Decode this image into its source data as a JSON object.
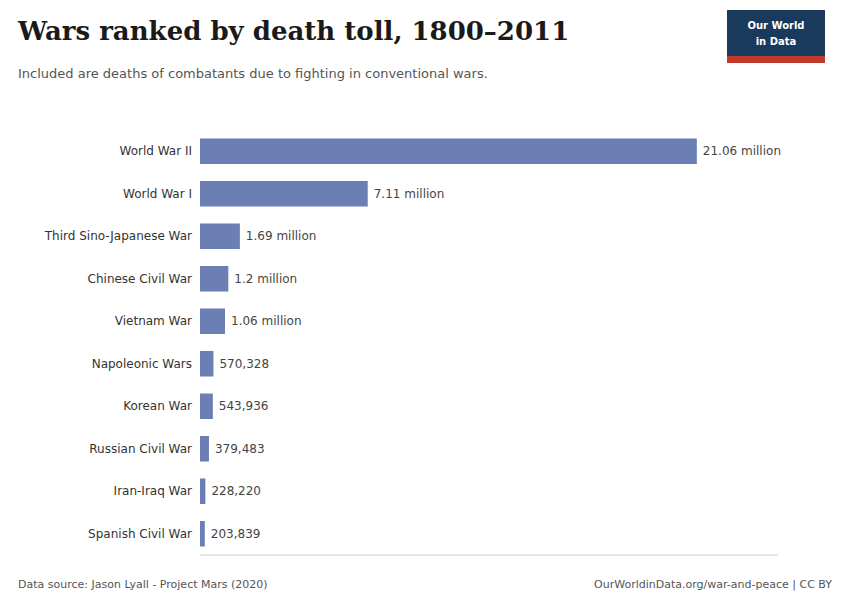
{
  "chart_data": {
    "type": "bar",
    "orientation": "horizontal",
    "title": "Wars ranked by death toll, 1800–2011",
    "subtitle": "Included are deaths of combatants due to fighting in conventional wars.",
    "categories": [
      "Spanish Civil War",
      "Iran-Iraq War",
      "Russian Civil War",
      "Korean War",
      "Napoleonic Wars",
      "Vietnam War",
      "Chinese Civil War",
      "Third Sino-Japanese War",
      "World War I",
      "World War II"
    ],
    "values": [
      203839,
      228220,
      379483,
      543936,
      570328,
      1060000,
      1200000,
      1690000,
      7110000,
      21060000
    ],
    "value_labels": [
      "203,839",
      "228,220",
      "379,483",
      "543,936",
      "570,328",
      "1.06 million",
      "1.2 million",
      "1.69 million",
      "7.11 million",
      "21.06 million"
    ],
    "data_labels": true,
    "color": "#6B7FB5",
    "xlim": [
      0,
      24500000
    ],
    "tick_labels": "y",
    "grid": false,
    "annotations": [
      "Data source: Jason Lyall - Project Mars (2020)",
      "OurWorldinData.org/war-and-peace | CC BY",
      "Our World",
      "in Data"
    ]
  }
}
